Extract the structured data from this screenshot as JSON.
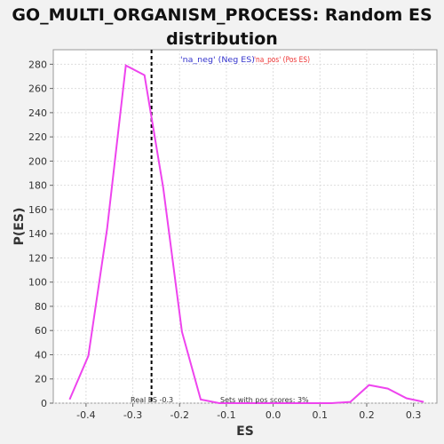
{
  "chart_data": {
    "type": "line",
    "title": "GO_MULTI_ORGANISM_PROCESS: Random ES distribution",
    "xlabel": "ES",
    "ylabel": "P(ES)",
    "xlim": [
      -0.47,
      0.35
    ],
    "ylim": [
      0,
      292
    ],
    "xticks": [
      "-0.4",
      "-0.3",
      "-0.2",
      "-0.1",
      "0.0",
      "0.1",
      "0.2",
      "0.3"
    ],
    "xtick_values": [
      -0.4,
      -0.3,
      -0.2,
      -0.1,
      0.0,
      0.1,
      0.2,
      0.3
    ],
    "yticks": [
      "0",
      "20",
      "40",
      "60",
      "80",
      "100",
      "120",
      "140",
      "160",
      "180",
      "200",
      "220",
      "240",
      "260",
      "280"
    ],
    "ytick_values": [
      0,
      20,
      40,
      60,
      80,
      100,
      120,
      140,
      160,
      180,
      200,
      220,
      240,
      260,
      280
    ],
    "grid": true,
    "series": [
      {
        "name": "'na_neg' (Neg ES)",
        "color": "#3333cc",
        "x": [],
        "y": []
      },
      {
        "name": "'na_pos' (Pos ES)",
        "color": "#ee3333",
        "x": [
          -0.435,
          -0.395,
          -0.355,
          -0.315,
          -0.275,
          -0.235,
          -0.195,
          -0.155,
          -0.115,
          -0.075,
          -0.035,
          0.005,
          0.045,
          0.085,
          0.125,
          0.165,
          0.205,
          0.245,
          0.285,
          0.322
        ],
        "y": [
          3,
          39,
          144,
          279,
          271,
          178,
          59,
          3,
          0,
          0,
          0,
          0,
          0,
          0,
          0,
          1,
          15,
          12,
          4,
          1
        ]
      }
    ],
    "line_color": "#ee44ee",
    "real_es": -0.26,
    "annotations": {
      "real_es_label": "Real ES -0.3",
      "pos_scores_label": "Sets with pos scores: 3%"
    },
    "legend_placement": "top-center"
  }
}
